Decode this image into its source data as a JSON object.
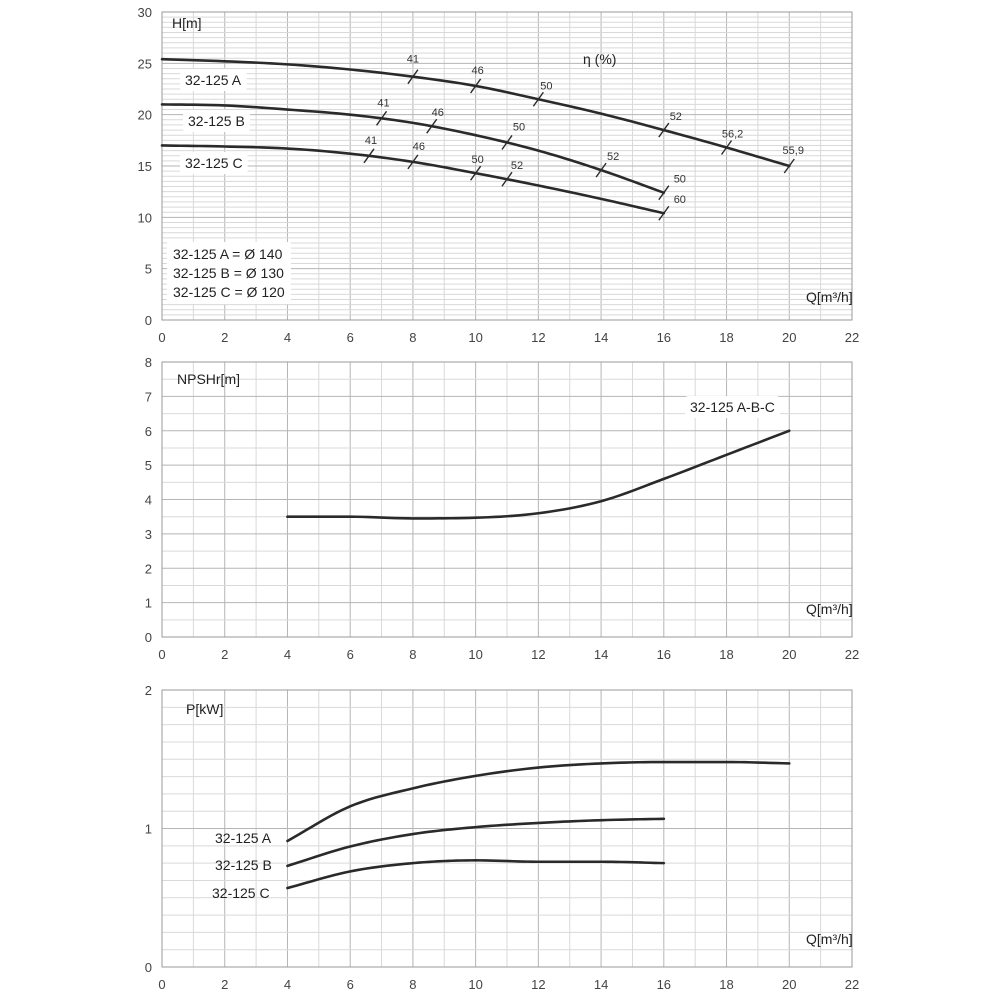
{
  "colors": {
    "curve": "#2a2a2a",
    "grid_major": "#b5b5b5",
    "grid_minor": "#d9d9d9",
    "background": "#ffffff"
  },
  "chart_data": [
    {
      "type": "line",
      "ylabel": "H[m]",
      "xlabel": "Q[m³/h]",
      "xlim": [
        0,
        22
      ],
      "ylim": [
        0,
        30
      ],
      "xticks": [
        0,
        2,
        4,
        6,
        8,
        10,
        12,
        14,
        16,
        18,
        20,
        22
      ],
      "yticks": [
        0,
        5,
        10,
        15,
        20,
        25,
        30
      ],
      "grid": true,
      "efficiency_label": "η (%)",
      "notes": [
        "32-125 A = Ø 140",
        "32-125 B = Ø 130",
        "32-125 C = Ø 120"
      ],
      "series": [
        {
          "name": "32-125 A",
          "x": [
            0,
            2,
            4,
            6,
            8,
            10,
            12,
            14,
            16,
            18,
            20
          ],
          "y": [
            25.4,
            25.2,
            24.9,
            24.4,
            23.7,
            22.8,
            21.5,
            20.1,
            18.5,
            16.8,
            15.0
          ],
          "efficiency_marks": [
            {
              "x": 8,
              "label": "41"
            },
            {
              "x": 10,
              "label": "46"
            },
            {
              "x": 12,
              "label": "50"
            },
            {
              "x": 16,
              "label": "52"
            },
            {
              "x": 18,
              "label": "56,2"
            },
            {
              "x": 20,
              "label": "55,9"
            }
          ]
        },
        {
          "name": "32-125 B",
          "x": [
            0,
            2,
            4,
            6,
            8,
            10,
            12,
            14,
            16
          ],
          "y": [
            21.0,
            20.9,
            20.5,
            20.0,
            19.2,
            18.0,
            16.5,
            14.6,
            12.4
          ],
          "efficiency_marks": [
            {
              "x": 7,
              "label": "41"
            },
            {
              "x": 8.6,
              "label": "46"
            },
            {
              "x": 11,
              "label": "50"
            },
            {
              "x": 14,
              "label": "52"
            },
            {
              "x": 16,
              "label": "50"
            }
          ]
        },
        {
          "name": "32-125 C",
          "x": [
            0,
            2,
            4,
            6,
            8,
            10,
            12,
            14,
            16
          ],
          "y": [
            17.0,
            16.9,
            16.7,
            16.2,
            15.4,
            14.3,
            13.1,
            11.8,
            10.4
          ],
          "efficiency_marks": [
            {
              "x": 6.6,
              "label": "41"
            },
            {
              "x": 8,
              "label": "46"
            },
            {
              "x": 10,
              "label": "50"
            },
            {
              "x": 11,
              "label": "52"
            },
            {
              "x": 16,
              "label": "60"
            }
          ]
        }
      ]
    },
    {
      "type": "line",
      "ylabel": "NPSHr[m]",
      "xlabel": "Q[m³/h]",
      "xlim": [
        0,
        22
      ],
      "ylim": [
        0,
        8
      ],
      "xticks": [
        0,
        2,
        4,
        6,
        8,
        10,
        12,
        14,
        16,
        18,
        20,
        22
      ],
      "yticks": [
        0,
        1,
        2,
        3,
        4,
        5,
        6,
        7,
        8
      ],
      "grid": true,
      "series": [
        {
          "name": "32-125 A-B-C",
          "x": [
            4,
            6,
            8,
            10,
            12,
            14,
            16,
            18,
            20
          ],
          "y": [
            3.5,
            3.5,
            3.45,
            3.47,
            3.6,
            3.95,
            4.6,
            5.3,
            6.0
          ]
        }
      ]
    },
    {
      "type": "line",
      "ylabel": "P[kW]",
      "xlabel": "Q[m³/h]",
      "xlim": [
        0,
        22
      ],
      "ylim": [
        0,
        2
      ],
      "xticks": [
        0,
        2,
        4,
        6,
        8,
        10,
        12,
        14,
        16,
        18,
        20,
        22
      ],
      "yticks": [
        0,
        1,
        2
      ],
      "grid": true,
      "series": [
        {
          "name": "32-125 A",
          "x": [
            4,
            6,
            8,
            10,
            12,
            14,
            16,
            18,
            20
          ],
          "y": [
            0.91,
            1.16,
            1.29,
            1.38,
            1.44,
            1.47,
            1.48,
            1.48,
            1.47
          ]
        },
        {
          "name": "32-125 B",
          "x": [
            4,
            6,
            8,
            10,
            12,
            14,
            16
          ],
          "y": [
            0.73,
            0.87,
            0.96,
            1.01,
            1.04,
            1.06,
            1.07
          ]
        },
        {
          "name": "32-125 C",
          "x": [
            4,
            6,
            8,
            10,
            12,
            14,
            16
          ],
          "y": [
            0.57,
            0.69,
            0.75,
            0.77,
            0.76,
            0.76,
            0.75
          ]
        }
      ]
    }
  ]
}
